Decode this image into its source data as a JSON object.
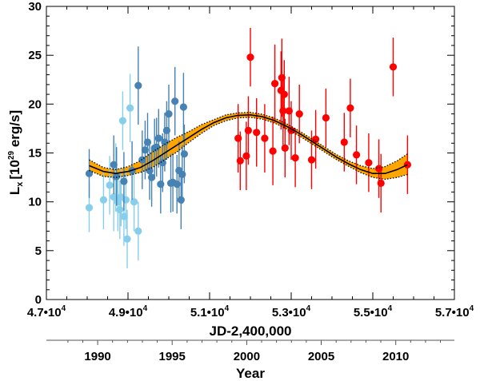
{
  "chart_data": {
    "type": "scatter",
    "title": "",
    "xlabel": "JD-2,400,000",
    "ylabel_main": "L",
    "ylabel_sub": "x",
    "ylabel_bracket_open": "[10",
    "ylabel_exp": "29",
    "ylabel_rest": " erg/s]",
    "secondary_xlabel": "Year",
    "xlim": [
      47000,
      57000
    ],
    "ylim": [
      0,
      30
    ],
    "x_ticks": [
      {
        "value": 47000,
        "mant": "4.7",
        "exp": "4"
      },
      {
        "value": 49000,
        "mant": "4.9",
        "exp": "4"
      },
      {
        "value": 51000,
        "mant": "5.1",
        "exp": "4"
      },
      {
        "value": 53000,
        "mant": "5.3",
        "exp": "4"
      },
      {
        "value": 55000,
        "mant": "5.5",
        "exp": "4"
      },
      {
        "value": 57000,
        "mant": "5.7",
        "exp": "4"
      }
    ],
    "tick_times_char": "•",
    "tick_base": "10",
    "y_ticks": [
      {
        "value": 0,
        "label": "0"
      },
      {
        "value": 5,
        "label": "5"
      },
      {
        "value": 10,
        "label": "10"
      },
      {
        "value": 15,
        "label": "15"
      },
      {
        "value": 20,
        "label": "20"
      },
      {
        "value": 25,
        "label": "25"
      },
      {
        "value": 30,
        "label": "30"
      }
    ],
    "year_ticks": [
      {
        "jd": 48257,
        "label": "1990"
      },
      {
        "jd": 50083,
        "label": "1995"
      },
      {
        "jd": 51910,
        "label": "2000"
      },
      {
        "jd": 53736,
        "label": "2005"
      },
      {
        "jd": 55563,
        "label": "2010"
      }
    ],
    "series": [
      {
        "name": "light-blue",
        "color": "#87ceeb",
        "points": [
          {
            "x": 48050,
            "y": 9.4,
            "err": 2.5
          },
          {
            "x": 48400,
            "y": 10.2,
            "err": 3.0
          },
          {
            "x": 48550,
            "y": 11.7,
            "err": 3.0
          },
          {
            "x": 48650,
            "y": 10.5,
            "err": 3.5
          },
          {
            "x": 48700,
            "y": 12.5,
            "err": 3.5
          },
          {
            "x": 48750,
            "y": 10.0,
            "err": 3.0
          },
          {
            "x": 48800,
            "y": 9.2,
            "err": 3.0
          },
          {
            "x": 48830,
            "y": 10.5,
            "err": 3.0
          },
          {
            "x": 48870,
            "y": 18.3,
            "err": 3.0
          },
          {
            "x": 48900,
            "y": 8.5,
            "err": 3.0
          },
          {
            "x": 48950,
            "y": 10.2,
            "err": 3.0
          },
          {
            "x": 48980,
            "y": 6.2,
            "err": 3.0
          },
          {
            "x": 49050,
            "y": 19.6,
            "err": 3.5
          },
          {
            "x": 49150,
            "y": 10.0,
            "err": 3.0
          },
          {
            "x": 49250,
            "y": 7.0,
            "err": 3.0
          }
        ]
      },
      {
        "name": "steel-blue",
        "color": "#4682b4",
        "points": [
          {
            "x": 48050,
            "y": 12.9,
            "err": 2.5
          },
          {
            "x": 48650,
            "y": 13.8,
            "err": 3.0
          },
          {
            "x": 48720,
            "y": 12.6,
            "err": 3.0
          },
          {
            "x": 48900,
            "y": 12.1,
            "err": 3.0
          },
          {
            "x": 49100,
            "y": 13.2,
            "err": 3.0
          },
          {
            "x": 49250,
            "y": 21.9,
            "err": 4.0
          },
          {
            "x": 49350,
            "y": 14.3,
            "err": 3.0
          },
          {
            "x": 49420,
            "y": 15.3,
            "err": 3.0
          },
          {
            "x": 49480,
            "y": 16.1,
            "err": 3.0
          },
          {
            "x": 49530,
            "y": 13.2,
            "err": 3.0
          },
          {
            "x": 49580,
            "y": 12.5,
            "err": 3.0
          },
          {
            "x": 49650,
            "y": 15.5,
            "err": 3.0
          },
          {
            "x": 49700,
            "y": 15.6,
            "err": 3.0
          },
          {
            "x": 49750,
            "y": 16.5,
            "err": 3.0
          },
          {
            "x": 49800,
            "y": 11.8,
            "err": 3.0
          },
          {
            "x": 49850,
            "y": 14.0,
            "err": 3.0
          },
          {
            "x": 49900,
            "y": 16.1,
            "err": 3.0
          },
          {
            "x": 49950,
            "y": 17.3,
            "err": 3.0
          },
          {
            "x": 50000,
            "y": 19.0,
            "err": 3.0
          },
          {
            "x": 50050,
            "y": 11.9,
            "err": 3.0
          },
          {
            "x": 50100,
            "y": 12.0,
            "err": 3.0
          },
          {
            "x": 50150,
            "y": 20.3,
            "err": 3.5
          },
          {
            "x": 50200,
            "y": 11.8,
            "err": 3.0
          },
          {
            "x": 50250,
            "y": 13.2,
            "err": 3.0
          },
          {
            "x": 50300,
            "y": 10.2,
            "err": 3.0
          },
          {
            "x": 50330,
            "y": 12.8,
            "err": 3.0
          },
          {
            "x": 50360,
            "y": 19.7,
            "err": 3.5
          },
          {
            "x": 50380,
            "y": 14.9,
            "err": 3.0
          }
        ]
      },
      {
        "name": "red",
        "color": "#ff0000",
        "points": [
          {
            "x": 51700,
            "y": 16.5,
            "err": 3.5
          },
          {
            "x": 51750,
            "y": 14.2,
            "err": 3.0
          },
          {
            "x": 51900,
            "y": 14.7,
            "err": 3.5
          },
          {
            "x": 51950,
            "y": 17.3,
            "err": 3.5
          },
          {
            "x": 52000,
            "y": 24.8,
            "err": 3.0
          },
          {
            "x": 52150,
            "y": 17.1,
            "err": 3.5
          },
          {
            "x": 52350,
            "y": 16.5,
            "err": 3.5
          },
          {
            "x": 52550,
            "y": 15.2,
            "err": 3.5
          },
          {
            "x": 52600,
            "y": 22.1,
            "err": 4.0
          },
          {
            "x": 52750,
            "y": 21.4,
            "err": 4.0
          },
          {
            "x": 52770,
            "y": 22.7,
            "err": 4.0
          },
          {
            "x": 52800,
            "y": 19.3,
            "err": 3.5
          },
          {
            "x": 52830,
            "y": 21.0,
            "err": 3.5
          },
          {
            "x": 52850,
            "y": 15.5,
            "err": 3.0
          },
          {
            "x": 52950,
            "y": 19.3,
            "err": 3.5
          },
          {
            "x": 53000,
            "y": 17.3,
            "err": 3.0
          },
          {
            "x": 53100,
            "y": 14.5,
            "err": 3.0
          },
          {
            "x": 53200,
            "y": 19.0,
            "err": 3.0
          },
          {
            "x": 53500,
            "y": 14.3,
            "err": 3.0
          },
          {
            "x": 53600,
            "y": 16.4,
            "err": 3.0
          },
          {
            "x": 53850,
            "y": 18.6,
            "err": 3.0
          },
          {
            "x": 54300,
            "y": 16.1,
            "err": 3.0
          },
          {
            "x": 54450,
            "y": 19.6,
            "err": 3.0
          },
          {
            "x": 54600,
            "y": 14.8,
            "err": 3.0
          },
          {
            "x": 54900,
            "y": 14.0,
            "err": 3.0
          },
          {
            "x": 55150,
            "y": 13.4,
            "err": 3.0
          },
          {
            "x": 55200,
            "y": 11.9,
            "err": 3.0
          },
          {
            "x": 55500,
            "y": 23.8,
            "err": 3.0
          },
          {
            "x": 55850,
            "y": 13.8,
            "err": 3.0
          }
        ]
      }
    ],
    "model_curve": {
      "line_color": "#000000",
      "band_color": "#ffa500",
      "points": [
        {
          "x": 48050,
          "y": 13.7,
          "lo": 13.2,
          "hi": 14.3
        },
        {
          "x": 48400,
          "y": 13.1,
          "lo": 12.6,
          "hi": 13.5
        },
        {
          "x": 48700,
          "y": 12.9,
          "lo": 12.5,
          "hi": 13.3
        },
        {
          "x": 49000,
          "y": 13.1,
          "lo": 12.7,
          "hi": 13.6
        },
        {
          "x": 49300,
          "y": 13.5,
          "lo": 13.0,
          "hi": 14.2
        },
        {
          "x": 49600,
          "y": 14.2,
          "lo": 13.5,
          "hi": 15.1
        },
        {
          "x": 49900,
          "y": 15.0,
          "lo": 14.3,
          "hi": 15.9
        },
        {
          "x": 50200,
          "y": 15.8,
          "lo": 15.1,
          "hi": 16.6
        },
        {
          "x": 50500,
          "y": 16.6,
          "lo": 16.1,
          "hi": 17.2
        },
        {
          "x": 50800,
          "y": 17.4,
          "lo": 17.0,
          "hi": 17.9
        },
        {
          "x": 51100,
          "y": 18.1,
          "lo": 17.8,
          "hi": 18.4
        },
        {
          "x": 51400,
          "y": 18.6,
          "lo": 18.3,
          "hi": 18.9
        },
        {
          "x": 51700,
          "y": 18.85,
          "lo": 18.6,
          "hi": 19.1
        },
        {
          "x": 52000,
          "y": 18.9,
          "lo": 18.65,
          "hi": 19.15
        },
        {
          "x": 52300,
          "y": 18.7,
          "lo": 18.45,
          "hi": 18.95
        },
        {
          "x": 52600,
          "y": 18.3,
          "lo": 18.05,
          "hi": 18.55
        },
        {
          "x": 52900,
          "y": 17.7,
          "lo": 17.45,
          "hi": 17.95
        },
        {
          "x": 53200,
          "y": 17.0,
          "lo": 16.75,
          "hi": 17.25
        },
        {
          "x": 53500,
          "y": 16.2,
          "lo": 15.95,
          "hi": 16.45
        },
        {
          "x": 53800,
          "y": 15.4,
          "lo": 15.15,
          "hi": 15.65
        },
        {
          "x": 54100,
          "y": 14.6,
          "lo": 14.35,
          "hi": 14.85
        },
        {
          "x": 54400,
          "y": 13.9,
          "lo": 13.65,
          "hi": 14.2
        },
        {
          "x": 54700,
          "y": 13.3,
          "lo": 13.0,
          "hi": 13.7
        },
        {
          "x": 55000,
          "y": 12.9,
          "lo": 12.5,
          "hi": 13.4
        },
        {
          "x": 55300,
          "y": 12.9,
          "lo": 12.3,
          "hi": 13.6
        },
        {
          "x": 55600,
          "y": 13.3,
          "lo": 12.5,
          "hi": 14.2
        },
        {
          "x": 55850,
          "y": 13.8,
          "lo": 12.8,
          "hi": 14.9
        }
      ]
    }
  }
}
